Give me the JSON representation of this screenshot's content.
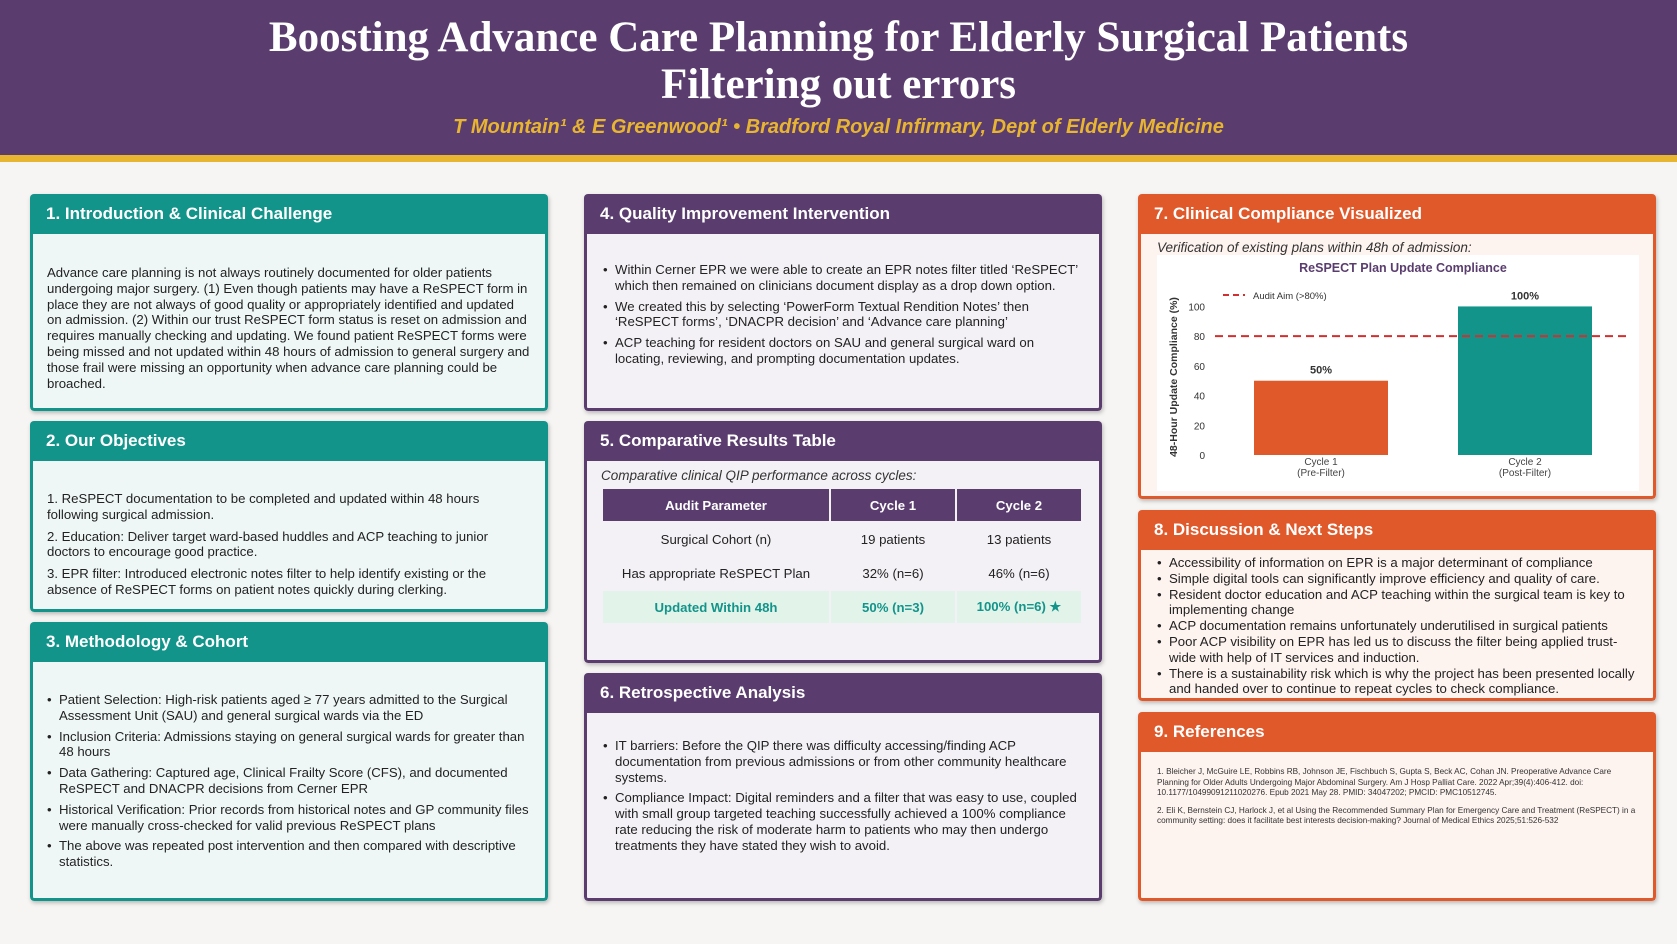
{
  "header": {
    "title_line1": "Boosting Advance Care Planning for Elderly Surgical Patients",
    "title_line2": "Filtering out errors",
    "authors": "T Mountain¹ & E Greenwood¹  •  Bradford Royal Infirmary, Dept of Elderly Medicine"
  },
  "intro": {
    "title": "1. Introduction & Clinical Challenge",
    "body": "Advance care planning is not always routinely documented for older patients undergoing major surgery. (1) Even though patients may have a ReSPECT form in place they are not always of good quality or appropriately identified and updated on admission. (2) Within our trust ReSPECT form status is reset on admission and requires manually checking and updating. We found patient ReSPECT forms were being missed and not updated within 48 hours of admission to general surgery and those frail were missing an opportunity when advance care planning could be broached."
  },
  "objectives": {
    "title": "2. Our Objectives",
    "items": [
      "1. ReSPECT documentation to be completed and updated within 48 hours following surgical admission.",
      "2. Education: Deliver target ward-based huddles and ACP teaching to junior doctors to encourage good practice.",
      "3. EPR filter: Introduced electronic notes filter to help identify existing or the absence of ReSPECT forms on patient notes quickly during clerking."
    ]
  },
  "methodology": {
    "title": "3. Methodology & Cohort",
    "items": [
      "Patient Selection: High-risk patients aged ≥ 77 years admitted to the Surgical Assessment Unit (SAU) and general surgical wards via the ED",
      " Inclusion Criteria: Admissions staying on general surgical wards for greater than 48 hours",
      "Data Gathering: Captured age, Clinical Frailty Score (CFS), and documented ReSPECT and DNACPR decisions from Cerner EPR",
      "Historical Verification: Prior records from historical notes and GP community files were manually cross-checked for valid previous ReSPECT plans",
      "The above was repeated post intervention and then compared with descriptive statistics."
    ]
  },
  "intervention": {
    "title": "4. Quality Improvement Intervention",
    "items": [
      "Within Cerner EPR we were able to create an EPR notes filter titled ‘ReSPECT’ which then remained on clinicians document display as a drop down option.",
      "We created this by selecting ‘PowerForm Textual Rendition Notes’ then ‘ReSPECT forms’, ‘DNACPR decision’ and ‘Advance care planning’",
      "ACP teaching for resident doctors on SAU and general surgical ward on locating, reviewing, and prompting documentation updates."
    ]
  },
  "results": {
    "title": "5. Comparative Results Table",
    "caption": "Comparative clinical QIP performance across cycles:",
    "headers": [
      "Audit Parameter",
      "Cycle 1",
      "Cycle 2"
    ],
    "rows": [
      [
        "Surgical Cohort (n)",
        "19 patients",
        "13 patients"
      ],
      [
        "Has appropriate ReSPECT Plan",
        "32% (n=6)",
        "46% (n=6)"
      ],
      [
        "Updated Within 48h",
        "50% (n=3)",
        "100% (n=6) ★"
      ]
    ]
  },
  "retrospective": {
    "title": "6. Retrospective Analysis",
    "items": [
      "IT barriers: Before the QIP there was difficulty accessing/finding ACP documentation from previous admissions or from other community healthcare systems.",
      "Compliance Impact: Digital reminders and a filter that was easy to use, coupled with small group targeted teaching successfully achieved a 100% compliance rate reducing the risk of moderate harm to patients who may then undergo treatments they have stated they wish to avoid."
    ]
  },
  "compliance": {
    "title": "7. Clinical Compliance Visualized",
    "caption": "Verification of existing plans within 48h of admission:"
  },
  "chart_data": {
    "type": "bar",
    "title": "ReSPECT Plan Update Compliance",
    "categories": [
      "Cycle 1\n(Pre-Filter)",
      "Cycle 2\n(Post-Filter)"
    ],
    "values": [
      50,
      100
    ],
    "data_labels": [
      "50%",
      "100%"
    ],
    "colors": [
      "#e0592a",
      "#13948a"
    ],
    "ylabel": "48-Hour Update Compliance (%)",
    "xlabel": "",
    "ylim": [
      0,
      105
    ],
    "yticks": [
      0,
      20,
      40,
      60,
      80,
      100
    ],
    "reference_line": {
      "value": 80,
      "label": "Audit Aim (>80%)",
      "color": "#d32f2f"
    },
    "legend_placement": "top-left",
    "grid": false
  },
  "discussion": {
    "title": "8. Discussion & Next Steps",
    "items": [
      "Accessibility of information on EPR is a major determinant of compliance",
      "Simple digital tools can significantly improve efficiency and quality of care.",
      "Resident doctor education and ACP teaching within the surgical team is key to implementing change",
      "ACP documentation remains unfortunately underutilised in surgical patients",
      "Poor ACP visibility on EPR has led us to discuss the filter being applied trust-wide with help of IT services and induction.",
      "There is a sustainability risk which is why the project has been presented locally and handed over to continue to repeat cycles to check compliance."
    ]
  },
  "references": {
    "title": "9. References",
    "items": [
      "1. Bleicher J, McGuire LE, Robbins RB, Johnson JE, Fischbuch S, Gupta S, Beck AC, Cohan JN. Preoperative Advance Care Planning for Older Adults Undergoing Major Abdominal Surgery. Am J Hosp Palliat Care. 2022 Apr;39(4):406-412. doi: 10.1177/10499091211020276. Epub 2021 May 28. PMID: 34047202; PMCID: PMC10512745.",
      "2. Eli K, Bernstein CJ, Harlock J, et al Using the Recommended Summary Plan for Emergency Care and Treatment (ReSPECT) in a community setting: does it facilitate best interests decision-making? Journal of Medical Ethics 2025;51:526-532"
    ]
  }
}
